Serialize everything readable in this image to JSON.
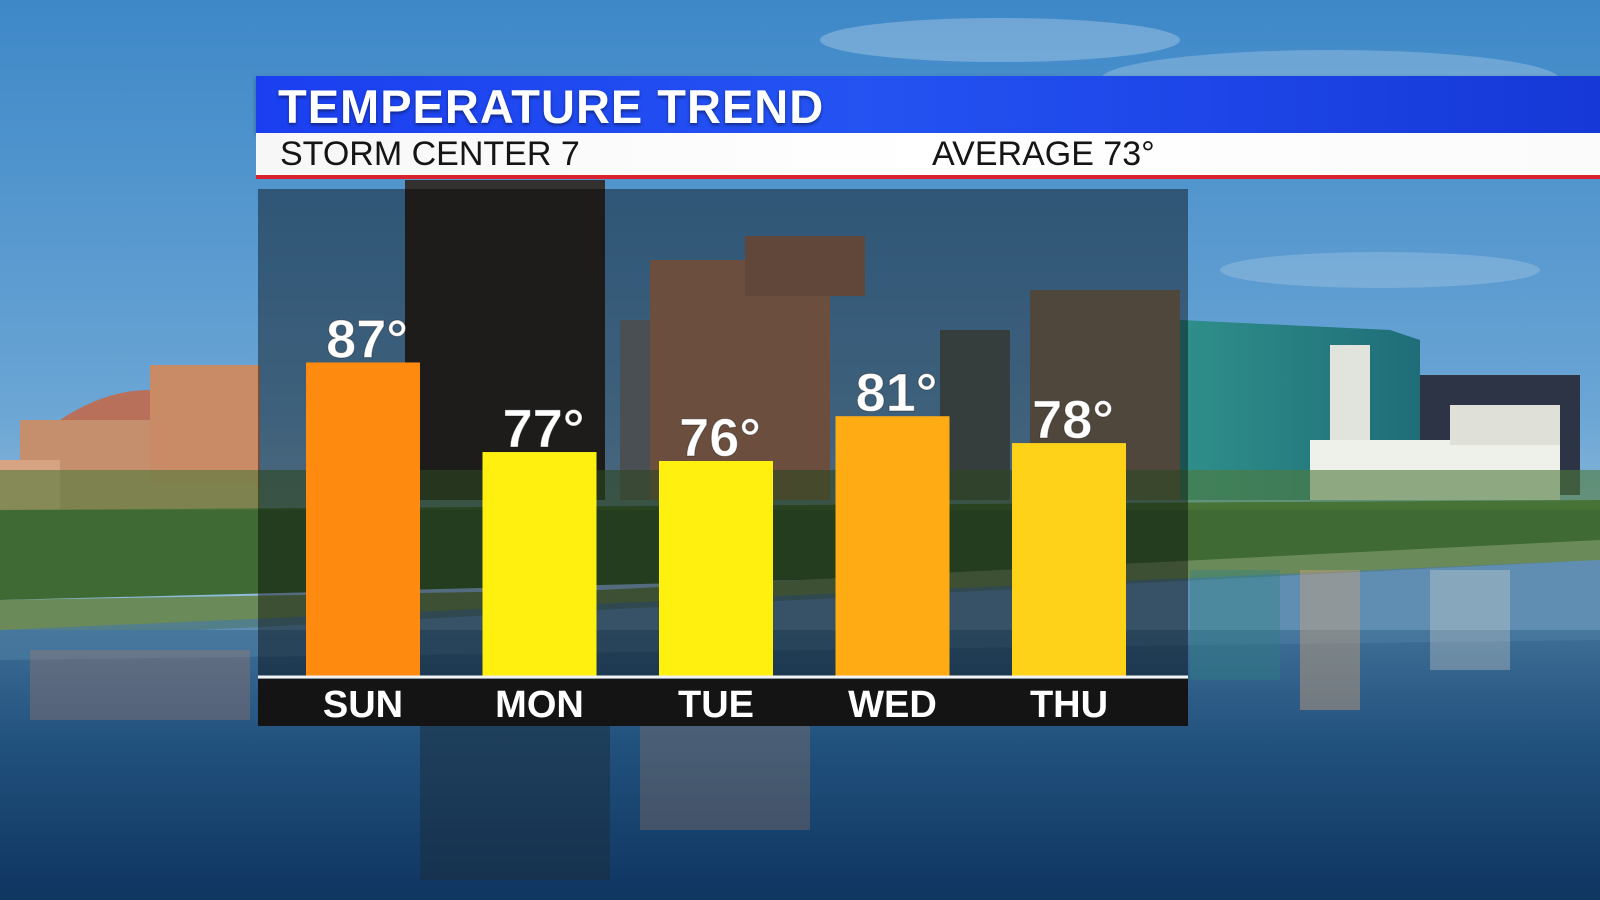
{
  "header": {
    "title": "TEMPERATURE TREND",
    "station": "STORM CENTER 7",
    "average": "AVERAGE 73°"
  },
  "colors": {
    "banner_blue": "#1e46e8",
    "accent_red": "#d9232e",
    "bar_hot": "#ff8a10",
    "bar_warm": "#ffac14",
    "bar_mild": "#ffd21a",
    "bar_cool": "#fff010"
  },
  "chart_data": {
    "type": "bar",
    "categories": [
      "SUN",
      "MON",
      "TUE",
      "WED",
      "THU"
    ],
    "values": [
      87,
      77,
      76,
      81,
      78
    ],
    "value_labels": [
      "87°",
      "77°",
      "76°",
      "81°",
      "78°"
    ],
    "unit": "°",
    "bar_colors": [
      "#ff8a10",
      "#fff010",
      "#fff010",
      "#ffac14",
      "#ffd21a"
    ],
    "ylim": [
      52,
      100
    ],
    "grid": false,
    "legend": "none"
  }
}
